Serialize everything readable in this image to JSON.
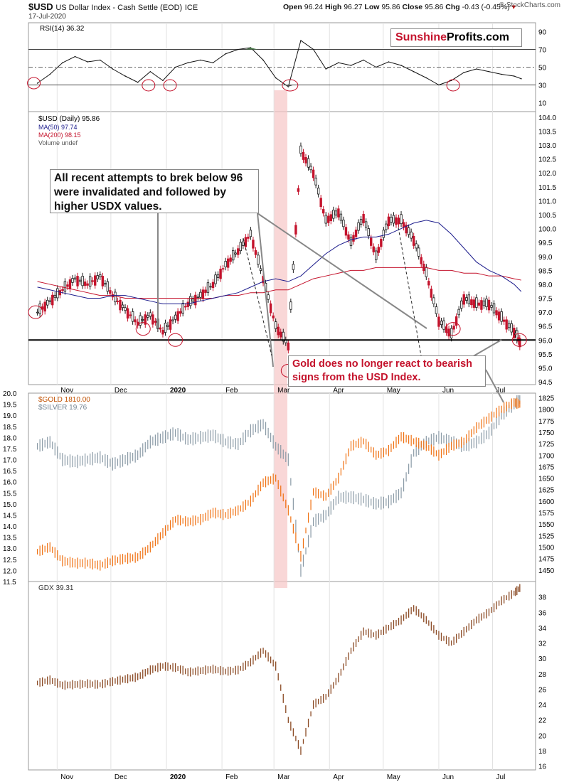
{
  "header": {
    "symbol": "$USD",
    "name": "US Dollar Index - Cash Settle (EOD)",
    "exchange": "ICE",
    "date": "17-Jul-2020",
    "open_label": "Open",
    "open": "96.24",
    "high_label": "High",
    "high": "96.27",
    "low_label": "Low",
    "low": "95.86",
    "close_label": "Close",
    "close": "95.86",
    "chg_label": "Chg",
    "chg": "-0.43 (-0.45%)",
    "credit": "© StockCharts.com"
  },
  "logo": {
    "part1": "Sunshine",
    "part2": "Profits.com"
  },
  "annotations": {
    "note1": "All recent attempts to brek below 96 were invalidated and followed by higher USDX values.",
    "note2": "Gold does no longer react to bearish signs from the USD Index."
  },
  "colors": {
    "up": "#1a1a1a",
    "down": "#c4132c",
    "ma50": "#1c1c8c",
    "ma200": "#c4132c",
    "gold": "#f07010",
    "silver": "#8a9aa6",
    "gdx": "#8b4a24",
    "highlight": "#f6c6c6",
    "rsi_fill": "#4a7a4a"
  },
  "chart_data": [
    {
      "type": "line",
      "title": "RSI(14) 36.32",
      "ylim": [
        0,
        100
      ],
      "y_ticks": [
        10,
        30,
        50,
        70,
        90
      ],
      "reference_lines": [
        30,
        50,
        70
      ],
      "x": [
        "2019-10-21",
        "2019-10-28",
        "2019-11-04",
        "2019-11-11",
        "2019-11-18",
        "2019-11-25",
        "2019-12-02",
        "2019-12-09",
        "2019-12-16",
        "2019-12-23",
        "2019-12-30",
        "2020-01-06",
        "2020-01-13",
        "2020-01-20",
        "2020-01-27",
        "2020-02-03",
        "2020-02-10",
        "2020-02-17",
        "2020-02-24",
        "2020-03-02",
        "2020-03-09",
        "2020-03-16",
        "2020-03-23",
        "2020-03-30",
        "2020-04-06",
        "2020-04-13",
        "2020-04-20",
        "2020-04-27",
        "2020-05-04",
        "2020-05-11",
        "2020-05-18",
        "2020-05-25",
        "2020-06-01",
        "2020-06-08",
        "2020-06-15",
        "2020-06-22",
        "2020-06-29",
        "2020-07-06",
        "2020-07-13",
        "2020-07-17"
      ],
      "values": [
        32,
        42,
        55,
        62,
        56,
        58,
        48,
        40,
        33,
        45,
        35,
        50,
        55,
        58,
        55,
        65,
        70,
        72,
        58,
        38,
        28,
        80,
        70,
        48,
        55,
        52,
        58,
        50,
        56,
        52,
        45,
        38,
        30,
        35,
        44,
        48,
        45,
        42,
        40,
        37
      ]
    },
    {
      "type": "candlestick",
      "title": "$USD (Daily) 95.86",
      "legend": [
        "MA(50) 97.74",
        "MA(200) 98.15",
        "Volume undef"
      ],
      "ylim": [
        94.4,
        104.2
      ],
      "y_ticks": [
        94.5,
        95.0,
        95.5,
        96.0,
        96.5,
        97.0,
        97.5,
        98.0,
        98.5,
        99.0,
        99.5,
        100.0,
        100.5,
        101.0,
        101.5,
        102.0,
        102.5,
        103.0,
        103.5,
        104.0
      ],
      "support_line": 96.0,
      "x": [
        "2019-10-21",
        "2019-10-28",
        "2019-11-04",
        "2019-11-11",
        "2019-11-18",
        "2019-11-25",
        "2019-12-02",
        "2019-12-09",
        "2019-12-16",
        "2019-12-23",
        "2019-12-30",
        "2020-01-06",
        "2020-01-13",
        "2020-01-20",
        "2020-01-27",
        "2020-02-03",
        "2020-02-10",
        "2020-02-17",
        "2020-02-24",
        "2020-03-02",
        "2020-03-09",
        "2020-03-16",
        "2020-03-23",
        "2020-03-30",
        "2020-04-06",
        "2020-04-13",
        "2020-04-20",
        "2020-04-27",
        "2020-05-04",
        "2020-05-11",
        "2020-05-18",
        "2020-05-25",
        "2020-06-01",
        "2020-06-08",
        "2020-06-15",
        "2020-06-22",
        "2020-06-29",
        "2020-07-06",
        "2020-07-13",
        "2020-07-17"
      ],
      "values": [
        97.0,
        97.4,
        97.8,
        98.2,
        98.0,
        98.3,
        97.6,
        97.1,
        96.6,
        96.9,
        96.3,
        96.8,
        97.3,
        97.6,
        98.0,
        98.7,
        99.2,
        99.8,
        98.2,
        96.5,
        95.8,
        102.8,
        102.0,
        100.3,
        100.6,
        99.5,
        100.4,
        99.0,
        100.3,
        100.3,
        99.6,
        98.4,
        96.7,
        96.2,
        97.5,
        97.3,
        97.3,
        96.8,
        96.3,
        95.86
      ],
      "ma50": [
        97.9,
        97.8,
        97.7,
        97.6,
        97.5,
        97.5,
        97.6,
        97.6,
        97.5,
        97.4,
        97.3,
        97.3,
        97.3,
        97.4,
        97.5,
        97.6,
        97.7,
        97.9,
        98.1,
        98.2,
        98.1,
        98.3,
        98.7,
        99.1,
        99.4,
        99.6,
        99.7,
        99.7,
        99.8,
        100.0,
        100.2,
        100.3,
        100.2,
        99.8,
        99.3,
        98.8,
        98.5,
        98.3,
        98.0,
        97.74
      ],
      "ma200": [
        98.1,
        98.0,
        97.9,
        97.8,
        97.7,
        97.6,
        97.6,
        97.5,
        97.5,
        97.5,
        97.5,
        97.5,
        97.5,
        97.5,
        97.5,
        97.6,
        97.6,
        97.7,
        97.7,
        97.8,
        97.8,
        98.0,
        98.2,
        98.3,
        98.4,
        98.5,
        98.5,
        98.6,
        98.6,
        98.6,
        98.6,
        98.6,
        98.5,
        98.5,
        98.4,
        98.4,
        98.3,
        98.3,
        98.2,
        98.15
      ]
    },
    {
      "type": "line",
      "title": "$GOLD 1810.00",
      "series_note": "$SILVER 19.76",
      "ylim_gold": [
        1425,
        1835
      ],
      "gold_ticks": [
        1450,
        1475,
        1500,
        1525,
        1550,
        1575,
        1600,
        1625,
        1650,
        1675,
        1700,
        1725,
        1750,
        1775,
        1800,
        1825
      ],
      "ylim_silver": [
        11.5,
        20.0
      ],
      "silver_ticks": [
        11.5,
        12.0,
        12.5,
        13.0,
        13.5,
        14.0,
        14.5,
        15.0,
        15.5,
        16.0,
        16.5,
        17.0,
        17.5,
        18.0,
        18.5,
        19.0,
        19.5,
        20.0
      ],
      "x": [
        "2019-10-21",
        "2019-10-28",
        "2019-11-04",
        "2019-11-11",
        "2019-11-18",
        "2019-11-25",
        "2019-12-02",
        "2019-12-09",
        "2019-12-16",
        "2019-12-23",
        "2019-12-30",
        "2020-01-06",
        "2020-01-13",
        "2020-01-20",
        "2020-01-27",
        "2020-02-03",
        "2020-02-10",
        "2020-02-17",
        "2020-02-24",
        "2020-03-02",
        "2020-03-09",
        "2020-03-16",
        "2020-03-23",
        "2020-03-30",
        "2020-04-06",
        "2020-04-13",
        "2020-04-20",
        "2020-04-27",
        "2020-05-04",
        "2020-05-11",
        "2020-05-18",
        "2020-05-25",
        "2020-06-01",
        "2020-06-08",
        "2020-06-15",
        "2020-06-22",
        "2020-06-29",
        "2020-07-06",
        "2020-07-13",
        "2020-07-17"
      ],
      "gold": [
        1490,
        1500,
        1470,
        1465,
        1465,
        1460,
        1470,
        1475,
        1478,
        1500,
        1530,
        1560,
        1555,
        1560,
        1575,
        1570,
        1580,
        1600,
        1640,
        1650,
        1580,
        1480,
        1620,
        1610,
        1650,
        1720,
        1730,
        1700,
        1710,
        1740,
        1730,
        1720,
        1700,
        1720,
        1730,
        1760,
        1780,
        1800,
        1815,
        1810
      ],
      "silver": [
        17.6,
        17.8,
        17.0,
        16.9,
        17.0,
        17.1,
        16.8,
        17.0,
        17.2,
        17.8,
        18.0,
        18.2,
        17.9,
        18.0,
        18.1,
        17.8,
        17.7,
        18.3,
        18.6,
        17.6,
        17.0,
        12.0,
        14.2,
        14.5,
        15.3,
        15.3,
        15.2,
        15.0,
        15.1,
        15.5,
        17.3,
        17.8,
        18.0,
        17.8,
        17.6,
        17.8,
        18.2,
        19.0,
        19.5,
        19.76
      ]
    },
    {
      "type": "line",
      "title": "GDX 39.31",
      "ylim": [
        15.5,
        40
      ],
      "y_ticks": [
        16,
        18,
        20,
        22,
        24,
        26,
        28,
        30,
        32,
        34,
        36,
        38
      ],
      "x_labels": [
        "Nov",
        "Dec",
        "2020",
        "Feb",
        "Mar",
        "Apr",
        "May",
        "Jun",
        "Jul"
      ],
      "x": [
        "2019-10-21",
        "2019-10-28",
        "2019-11-04",
        "2019-11-11",
        "2019-11-18",
        "2019-11-25",
        "2019-12-02",
        "2019-12-09",
        "2019-12-16",
        "2019-12-23",
        "2019-12-30",
        "2020-01-06",
        "2020-01-13",
        "2020-01-20",
        "2020-01-27",
        "2020-02-03",
        "2020-02-10",
        "2020-02-17",
        "2020-02-24",
        "2020-03-02",
        "2020-03-09",
        "2020-03-16",
        "2020-03-23",
        "2020-03-30",
        "2020-04-06",
        "2020-04-13",
        "2020-04-20",
        "2020-04-27",
        "2020-05-04",
        "2020-05-11",
        "2020-05-18",
        "2020-05-25",
        "2020-06-01",
        "2020-06-08",
        "2020-06-15",
        "2020-06-22",
        "2020-06-29",
        "2020-07-06",
        "2020-07-13",
        "2020-07-17"
      ],
      "values": [
        26.8,
        27.2,
        26.5,
        26.6,
        26.7,
        26.6,
        27.0,
        27.3,
        27.6,
        28.5,
        29.0,
        28.8,
        28.2,
        28.4,
        28.6,
        28.3,
        28.5,
        29.5,
        31.0,
        29.0,
        22.0,
        18.0,
        24.0,
        25.0,
        27.5,
        31.0,
        33.5,
        33.0,
        34.0,
        35.0,
        36.5,
        35.0,
        33.0,
        32.0,
        33.5,
        35.0,
        36.0,
        37.5,
        38.5,
        39.31
      ]
    }
  ]
}
